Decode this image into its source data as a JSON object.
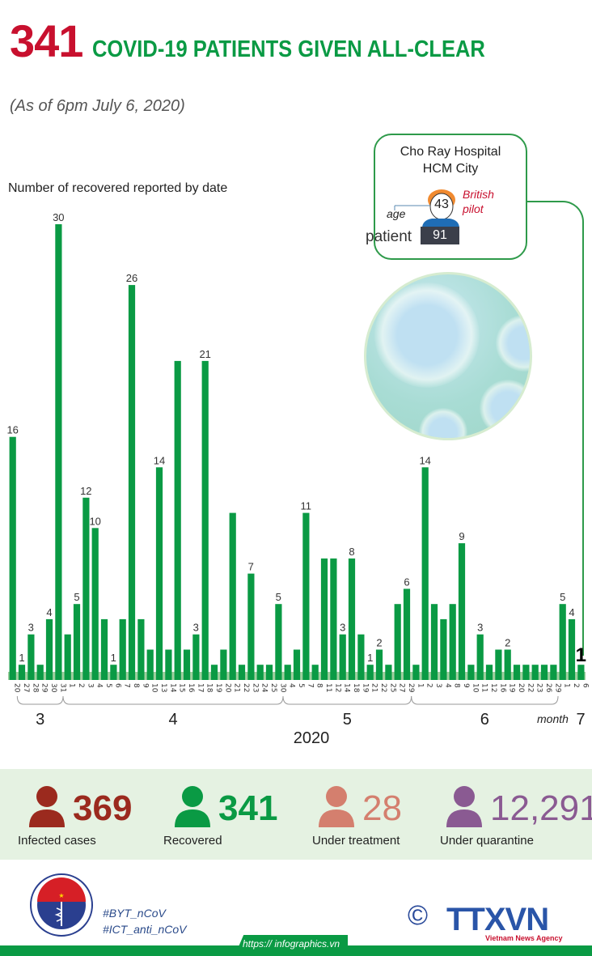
{
  "header": {
    "number": "341",
    "title": "COVID-19 PATIENTS GIVEN ALL-CLEAR",
    "subtitle": "(As of 6pm July 6, 2020)"
  },
  "callout": {
    "hospital_line1": "Cho Ray Hospital",
    "hospital_line2": "HCM City",
    "age_label": "age",
    "age": "43",
    "nationality_line1": "British",
    "nationality_line2": "pilot",
    "patient_label": "patient",
    "patient_id": "91"
  },
  "chart_data": {
    "type": "bar",
    "title": "Number of recovered reported by date",
    "xlabel": "2020",
    "month_label": "month",
    "categories": [
      "20",
      "27",
      "28",
      "29",
      "30",
      "31",
      "1",
      "2",
      "3",
      "4",
      "5",
      "6",
      "7",
      "8",
      "9",
      "10",
      "13",
      "14",
      "15",
      "16",
      "17",
      "18",
      "19",
      "20",
      "21",
      "22",
      "23",
      "24",
      "25",
      "30",
      "4",
      "5",
      "7",
      "8",
      "11",
      "12",
      "14",
      "18",
      "19",
      "21",
      "22",
      "25",
      "27",
      "29",
      "1",
      "2",
      "3",
      "4",
      "8",
      "9",
      "10",
      "11",
      "12",
      "16",
      "19",
      "20",
      "22",
      "23",
      "26",
      "29",
      "1",
      "2",
      "6"
    ],
    "months": [
      {
        "label": "3",
        "start": 1,
        "end": 5
      },
      {
        "label": "4",
        "start": 6,
        "end": 29
      },
      {
        "label": "5",
        "start": 30,
        "end": 43
      },
      {
        "label": "6",
        "start": 44,
        "end": 59
      },
      {
        "label": "7",
        "start": 60,
        "end": 62
      }
    ],
    "values": [
      16,
      1,
      3,
      1,
      4,
      30,
      3,
      5,
      12,
      10,
      4,
      1,
      4,
      26,
      4,
      2,
      14,
      2,
      21,
      2,
      3,
      21,
      1,
      2,
      11,
      1,
      7,
      1,
      1,
      5,
      1,
      2,
      11,
      1,
      8,
      8,
      3,
      8,
      3,
      1,
      2,
      1,
      5,
      6,
      1,
      14,
      5,
      4,
      5,
      9,
      1,
      3,
      1,
      2,
      2,
      1,
      1,
      1,
      1,
      1,
      5,
      4,
      1
    ],
    "labeled": [
      0,
      1,
      2,
      4,
      5,
      7,
      8,
      9,
      11,
      13,
      16,
      20,
      21,
      26,
      29,
      32,
      36,
      37,
      39,
      40,
      43,
      45,
      49,
      51,
      54,
      60,
      61,
      62
    ],
    "ylim": [
      0,
      30
    ],
    "grid": false,
    "bar_color": "#0a9a44",
    "highlight_index": 62
  },
  "summary": [
    {
      "value": "369",
      "label": "Infected cases",
      "color": "#9b2a1e"
    },
    {
      "value": "341",
      "label": "Recovered",
      "color": "#0a9a44"
    },
    {
      "value": "28",
      "label": "Under treatment",
      "color": "#d47f6e"
    },
    {
      "value": "12,291",
      "label": "Under quarantine",
      "color": "#8a5a92"
    }
  ],
  "footer": {
    "hashtag1": "#BYT_nCoV",
    "hashtag2": "#ICT_anti_nCoV",
    "url": "https:// infographics.vn",
    "copyright": "©",
    "agency": "TTXVN",
    "agency_sub": "Vietnam News Agency",
    "moh_top": "BỘ Y TẾ",
    "moh_bottom": "MINISTRY OF HEALTH"
  }
}
